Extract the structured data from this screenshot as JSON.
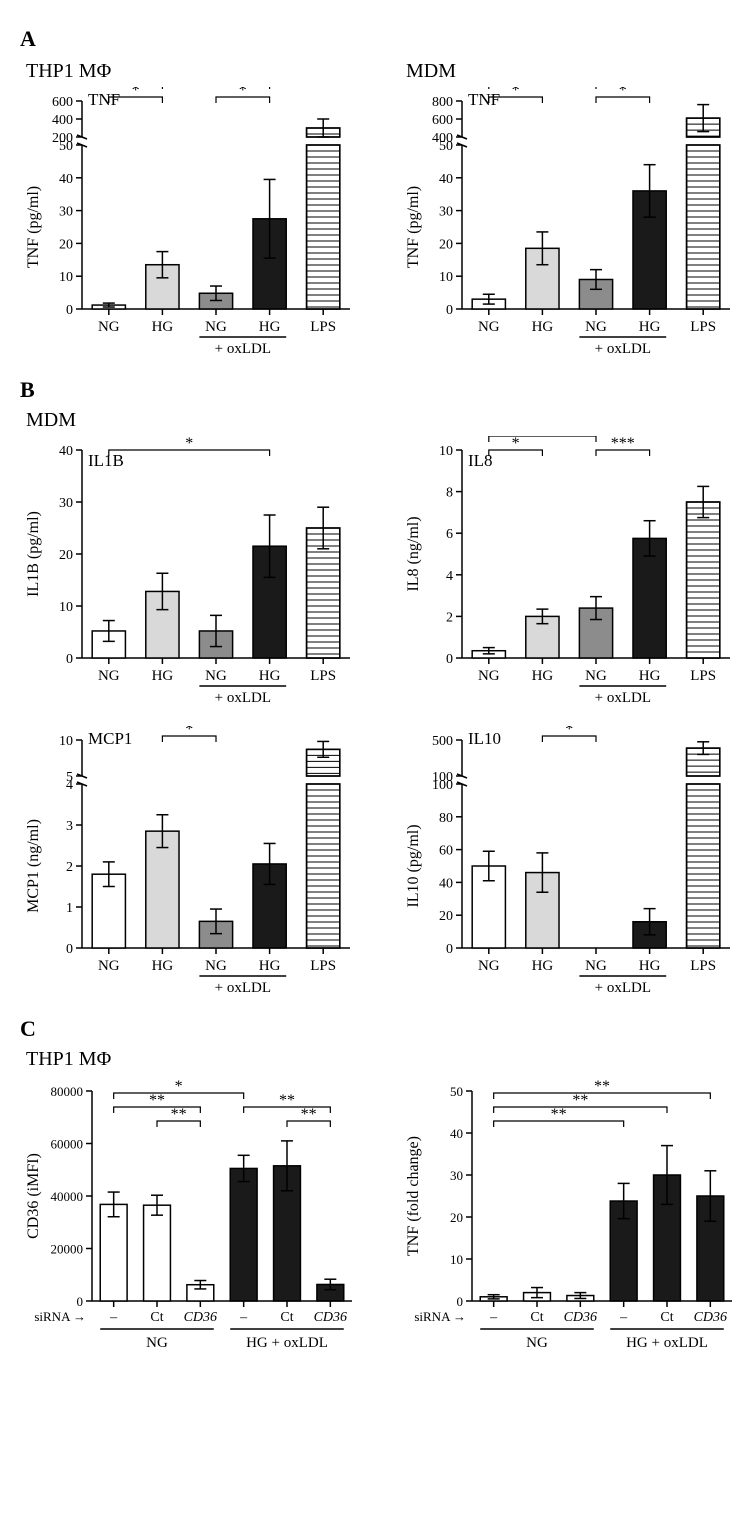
{
  "colors": {
    "bg": "#ffffff",
    "ink": "#000000",
    "NG": "#ffffff",
    "HG": "#d9d9d9",
    "NG_ox": "#8c8c8c",
    "HG_ox": "#1a1a1a",
    "LPS_fill": "#ffffff"
  },
  "labels": {
    "NG": "NG",
    "HG": "HG",
    "LPS": "LPS",
    "oxLDL": "+ oxLDL",
    "siRNA": "siRNA →",
    "dash": "–",
    "Ct": "Ct",
    "CD36": "CD36",
    "HG_ox_grp": "HG + oxLDL"
  },
  "A": {
    "left": {
      "subtitle": "THP1 MΦ",
      "inset": "TNF",
      "ylab": "TNF (pg/ml)",
      "lower": {
        "min": 0,
        "max": 50,
        "ticks": [
          0,
          10,
          20,
          30,
          40,
          50
        ]
      },
      "upper": {
        "min": 200,
        "max": 600,
        "ticks": [
          200,
          400,
          600
        ]
      },
      "bars": [
        {
          "k": "NG",
          "v": 1.2,
          "err": 0.6,
          "fill": "NG"
        },
        {
          "k": "HG",
          "v": 13.5,
          "err": 4,
          "fill": "HG"
        },
        {
          "k": "NG",
          "v": 4.8,
          "err": 2.2,
          "fill": "NG_ox"
        },
        {
          "k": "HG",
          "v": 27.5,
          "err": 12,
          "fill": "HG_ox"
        },
        {
          "k": "LPS",
          "v": 300,
          "err": 100,
          "fill": "LPS",
          "hatch": true,
          "upper": true
        }
      ],
      "sig": [
        {
          "a": 0,
          "b": 1,
          "txt": "*",
          "lvl": 0
        },
        {
          "a": 1,
          "b": 3,
          "txt": "*",
          "lvl": 1
        },
        {
          "a": 2,
          "b": 3,
          "txt": "*",
          "lvl": 0
        },
        {
          "a": 0,
          "b": 3,
          "txt": "**",
          "lvl": 2
        }
      ]
    },
    "right": {
      "subtitle": "MDM",
      "inset": "TNF",
      "ylab": "TNF (pg/ml)",
      "lower": {
        "min": 0,
        "max": 50,
        "ticks": [
          0,
          10,
          20,
          30,
          40,
          50
        ]
      },
      "upper": {
        "min": 400,
        "max": 800,
        "ticks": [
          400,
          600,
          800
        ]
      },
      "bars": [
        {
          "k": "NG",
          "v": 3,
          "err": 1.5,
          "fill": "NG"
        },
        {
          "k": "HG",
          "v": 18.5,
          "err": 5,
          "fill": "HG"
        },
        {
          "k": "NG",
          "v": 9,
          "err": 3,
          "fill": "NG_ox"
        },
        {
          "k": "HG",
          "v": 36,
          "err": 8,
          "fill": "HG_ox"
        },
        {
          "k": "LPS",
          "v": 610,
          "err": 150,
          "fill": "LPS",
          "hatch": true,
          "upper": true
        }
      ],
      "sig": [
        {
          "a": 0,
          "b": 1,
          "txt": "*",
          "lvl": 0
        },
        {
          "a": 0,
          "b": 2,
          "txt": "*",
          "lvl": 1
        },
        {
          "a": 2,
          "b": 3,
          "txt": "*",
          "lvl": 0
        },
        {
          "a": 1,
          "b": 3,
          "txt": "*",
          "lvl": 2
        },
        {
          "a": 0,
          "b": 3,
          "txt": "***",
          "lvl": 3
        }
      ]
    }
  },
  "B": {
    "subtitle": "MDM",
    "il1b": {
      "inset": "IL1B",
      "ylab": "IL1B (pg/ml)",
      "axis": {
        "min": 0,
        "max": 40,
        "ticks": [
          0,
          10,
          20,
          30,
          40
        ]
      },
      "bars": [
        {
          "k": "NG",
          "v": 5.2,
          "err": 2,
          "fill": "NG"
        },
        {
          "k": "HG",
          "v": 12.8,
          "err": 3.5,
          "fill": "HG"
        },
        {
          "k": "NG",
          "v": 5.2,
          "err": 3,
          "fill": "NG_ox"
        },
        {
          "k": "HG",
          "v": 21.5,
          "err": 6,
          "fill": "HG_ox"
        },
        {
          "k": "LPS",
          "v": 25,
          "err": 4,
          "fill": "LPS",
          "hatch": true
        }
      ],
      "sig": [
        {
          "a": 0,
          "b": 3,
          "txt": "*",
          "lvl": 0
        }
      ]
    },
    "il8": {
      "inset": "IL8",
      "ylab": "IL8 (ng/ml)",
      "axis": {
        "min": 0,
        "max": 10,
        "ticks": [
          0,
          2,
          4,
          6,
          8,
          10
        ]
      },
      "bars": [
        {
          "k": "NG",
          "v": 0.35,
          "err": 0.15,
          "fill": "NG"
        },
        {
          "k": "HG",
          "v": 2.0,
          "err": 0.35,
          "fill": "HG"
        },
        {
          "k": "NG",
          "v": 2.4,
          "err": 0.55,
          "fill": "NG_ox"
        },
        {
          "k": "HG",
          "v": 5.75,
          "err": 0.85,
          "fill": "HG_ox"
        },
        {
          "k": "LPS",
          "v": 7.5,
          "err": 0.75,
          "fill": "LPS",
          "hatch": true
        }
      ],
      "sig": [
        {
          "a": 0,
          "b": 1,
          "txt": "*",
          "lvl": 0
        },
        {
          "a": 0,
          "b": 2,
          "txt": "*",
          "lvl": 1
        },
        {
          "a": 2,
          "b": 3,
          "txt": "***",
          "lvl": 0
        },
        {
          "a": 1,
          "b": 3,
          "txt": "***",
          "lvl": 2
        },
        {
          "a": 0,
          "b": 3,
          "txt": "***",
          "lvl": 3
        }
      ]
    },
    "mcp1": {
      "inset": "MCP1",
      "ylab": "MCP1 (ng/ml)",
      "lower": {
        "min": 0,
        "max": 4,
        "ticks": [
          0,
          1,
          2,
          3,
          4
        ]
      },
      "upper": {
        "min": 5,
        "max": 10,
        "ticks": [
          5,
          10
        ]
      },
      "bars": [
        {
          "k": "NG",
          "v": 1.8,
          "err": 0.3,
          "fill": "NG"
        },
        {
          "k": "HG",
          "v": 2.85,
          "err": 0.4,
          "fill": "HG"
        },
        {
          "k": "NG",
          "v": 0.65,
          "err": 0.3,
          "fill": "NG_ox"
        },
        {
          "k": "HG",
          "v": 2.05,
          "err": 0.5,
          "fill": "HG_ox"
        },
        {
          "k": "LPS",
          "v": 8.7,
          "err": 1.1,
          "fill": "LPS",
          "hatch": true,
          "upper": true
        }
      ],
      "sig": [
        {
          "a": 1,
          "b": 2,
          "txt": "*",
          "lvl": 0
        }
      ]
    },
    "il10": {
      "inset": "IL10",
      "ylab": "IL10 (pg/ml)",
      "lower": {
        "min": 0,
        "max": 100,
        "ticks": [
          0,
          20,
          40,
          60,
          80,
          100
        ]
      },
      "upper": {
        "min": 100,
        "max": 500,
        "ticks": [
          100,
          500
        ]
      },
      "bars": [
        {
          "k": "NG",
          "v": 50,
          "err": 9,
          "fill": "NG"
        },
        {
          "k": "HG",
          "v": 46,
          "err": 12,
          "fill": "HG"
        },
        {
          "k": "NG",
          "v": 0,
          "err": 0,
          "fill": "NG_ox"
        },
        {
          "k": "HG",
          "v": 16,
          "err": 8,
          "fill": "HG_ox"
        },
        {
          "k": "LPS",
          "v": 410,
          "err": 70,
          "fill": "LPS",
          "hatch": true,
          "upper": true
        }
      ],
      "sig": [
        {
          "a": 1,
          "b": 2,
          "txt": "*",
          "lvl": 0
        }
      ]
    }
  },
  "C": {
    "subtitle": "THP1 MΦ",
    "left": {
      "ylab": "CD36 (iMFI)",
      "axis": {
        "min": 0,
        "max": 80000,
        "ticks": [
          0,
          20000,
          40000,
          60000,
          80000
        ]
      },
      "bars": [
        {
          "v": 36800,
          "err": 4700,
          "fill": "NG"
        },
        {
          "v": 36500,
          "err": 3800,
          "fill": "NG"
        },
        {
          "v": 6200,
          "err": 1600,
          "fill": "NG"
        },
        {
          "v": 50500,
          "err": 5000,
          "fill": "HG_ox"
        },
        {
          "v": 51500,
          "err": 9500,
          "fill": "HG_ox"
        },
        {
          "v": 6300,
          "err": 2000,
          "fill": "HG_ox"
        }
      ],
      "xlabels": [
        "–",
        "Ct",
        "CD36",
        "–",
        "Ct",
        "CD36"
      ],
      "groups": [
        "NG",
        "HG + oxLDL"
      ],
      "sig": [
        {
          "a": 1,
          "b": 2,
          "txt": "**",
          "lvl": 0
        },
        {
          "a": 0,
          "b": 2,
          "txt": "**",
          "lvl": 1
        },
        {
          "a": 0,
          "b": 3,
          "txt": "*",
          "lvl": 2
        },
        {
          "a": 4,
          "b": 5,
          "txt": "**",
          "lvl": 0
        },
        {
          "a": 3,
          "b": 5,
          "txt": "**",
          "lvl": 1
        }
      ]
    },
    "right": {
      "ylab": "TNF (fold change)",
      "axis": {
        "min": 0,
        "max": 50,
        "ticks": [
          0,
          10,
          20,
          30,
          40,
          50
        ]
      },
      "bars": [
        {
          "v": 1,
          "err": 0.5,
          "fill": "NG"
        },
        {
          "v": 2,
          "err": 1.2,
          "fill": "NG"
        },
        {
          "v": 1.3,
          "err": 0.7,
          "fill": "NG"
        },
        {
          "v": 23.8,
          "err": 4.2,
          "fill": "HG_ox"
        },
        {
          "v": 30,
          "err": 7,
          "fill": "HG_ox"
        },
        {
          "v": 25,
          "err": 6,
          "fill": "HG_ox"
        }
      ],
      "xlabels": [
        "–",
        "Ct",
        "CD36",
        "–",
        "Ct",
        "CD36"
      ],
      "groups": [
        "NG",
        "HG + oxLDL"
      ],
      "sig": [
        {
          "a": 0,
          "b": 3,
          "txt": "**",
          "lvl": 0
        },
        {
          "a": 0,
          "b": 4,
          "txt": "**",
          "lvl": 1
        },
        {
          "a": 0,
          "b": 5,
          "txt": "**",
          "lvl": 2
        }
      ]
    }
  }
}
